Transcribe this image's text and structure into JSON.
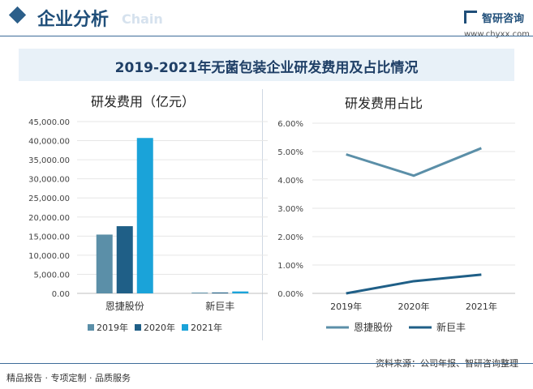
{
  "header": {
    "title": "企业分析",
    "watermark": "Chain"
  },
  "logo": {
    "name": "智研咨询",
    "url": "www.chyxx.com"
  },
  "banner": {
    "title": "2019-2021年无菌包装企业研发费用及占比情况"
  },
  "footer": {
    "left": "精品报告 · 专项定制 · 品质服务",
    "right": "资料来源：公司年报、智研咨询整理"
  },
  "colors": {
    "c2019": "#5b8fa8",
    "c2020": "#1f5f87",
    "c2021": "#1aa3d9",
    "lineA": "#5b8fa8",
    "lineB": "#1f5f87"
  },
  "chart_data": [
    {
      "type": "bar",
      "title": "研发费用（亿元）",
      "categories": [
        "恩捷股份",
        "新巨丰"
      ],
      "series": [
        {
          "name": "2019年",
          "values": [
            15400,
            200
          ]
        },
        {
          "name": "2020年",
          "values": [
            17600,
            230
          ]
        },
        {
          "name": "2021年",
          "values": [
            40700,
            500
          ]
        }
      ],
      "ylim": [
        0,
        45000
      ],
      "yticks": [
        "0.00",
        "5,000.00",
        "10,000.00",
        "15,000.00",
        "20,000.00",
        "25,000.00",
        "30,000.00",
        "35,000.00",
        "40,000.00",
        "45,000.00"
      ],
      "legend": "bottom"
    },
    {
      "type": "line",
      "title": "研发费用占比",
      "x": [
        "2019年",
        "2020年",
        "2021年"
      ],
      "series": [
        {
          "name": "恩捷股份",
          "values": [
            4.9,
            4.15,
            5.12
          ]
        },
        {
          "name": "新巨丰",
          "values": [
            0.0,
            0.43,
            0.66
          ]
        }
      ],
      "ylim": [
        0,
        6
      ],
      "yticks": [
        "0.00%",
        "1.00%",
        "2.00%",
        "3.00%",
        "4.00%",
        "5.00%",
        "6.00%"
      ],
      "legend": "bottom"
    }
  ]
}
